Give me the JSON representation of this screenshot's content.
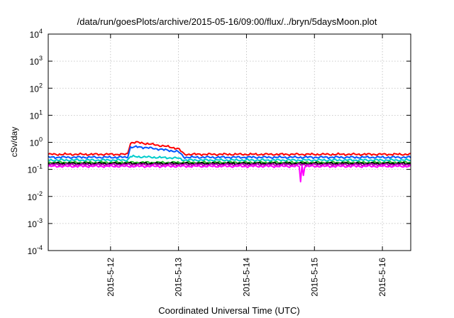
{
  "chart_data": {
    "type": "line",
    "title": "/data/run/goesPlots/archive/2015-05-16/09:00/flux/../bryn/5daysMoon.plot",
    "xlabel": "Coordinated Universal Time (UTC)",
    "ylabel": "cSv/day",
    "yscale": "log",
    "ylim": [
      0.0001,
      10000
    ],
    "y_ticks": [
      {
        "exp": "-4",
        "value": 0.0001
      },
      {
        "exp": "-3",
        "value": 0.001
      },
      {
        "exp": "-2",
        "value": 0.01
      },
      {
        "exp": "-1",
        "value": 0.1
      },
      {
        "exp": "0",
        "value": 1
      },
      {
        "exp": "1",
        "value": 10
      },
      {
        "exp": "2",
        "value": 100
      },
      {
        "exp": "3",
        "value": 1000
      },
      {
        "exp": "4",
        "value": 10000
      }
    ],
    "xlim": [
      "2015-05-11T02:00",
      "2015-05-16T10:00"
    ],
    "x_ticks": [
      {
        "label": "2015-5-12",
        "date": "2015-05-12T00:00"
      },
      {
        "label": "2015-5-13",
        "date": "2015-05-13T00:00"
      },
      {
        "label": "2015-5-14",
        "date": "2015-05-14T00:00"
      },
      {
        "label": "2015-5-15",
        "date": "2015-05-15T00:00"
      },
      {
        "label": "2015-5-16",
        "date": "2015-05-16T00:00"
      }
    ],
    "grid": true,
    "legend": "none",
    "series": [
      {
        "color": "#ff0000",
        "base": 0.34,
        "points": [
          {
            "x": "2015-05-11T02:00",
            "y": 0.36
          },
          {
            "x": "2015-05-12T06:00",
            "y": 0.36
          },
          {
            "x": "2015-05-12T07:00",
            "y": 0.95
          },
          {
            "x": "2015-05-12T09:00",
            "y": 1.0
          },
          {
            "x": "2015-05-12T12:00",
            "y": 0.92
          },
          {
            "x": "2015-05-12T16:00",
            "y": 0.8
          },
          {
            "x": "2015-05-12T20:00",
            "y": 0.7
          },
          {
            "x": "2015-05-13T00:00",
            "y": 0.58
          },
          {
            "x": "2015-05-13T02:00",
            "y": 0.36
          },
          {
            "x": "2015-05-16T10:00",
            "y": 0.36
          }
        ]
      },
      {
        "color": "#0055ff",
        "base": 0.27,
        "points": [
          {
            "x": "2015-05-11T02:00",
            "y": 0.28
          },
          {
            "x": "2015-05-12T06:00",
            "y": 0.28
          },
          {
            "x": "2015-05-12T07:00",
            "y": 0.65
          },
          {
            "x": "2015-05-12T10:00",
            "y": 0.68
          },
          {
            "x": "2015-05-12T16:00",
            "y": 0.58
          },
          {
            "x": "2015-05-13T00:00",
            "y": 0.45
          },
          {
            "x": "2015-05-13T02:00",
            "y": 0.28
          },
          {
            "x": "2015-05-16T10:00",
            "y": 0.28
          }
        ]
      },
      {
        "color": "#00cccc",
        "base": 0.22,
        "points": [
          {
            "x": "2015-05-11T02:00",
            "y": 0.22
          },
          {
            "x": "2015-05-12T06:00",
            "y": 0.22
          },
          {
            "x": "2015-05-12T07:00",
            "y": 0.3
          },
          {
            "x": "2015-05-13T00:00",
            "y": 0.26
          },
          {
            "x": "2015-05-13T02:00",
            "y": 0.22
          },
          {
            "x": "2015-05-16T10:00",
            "y": 0.22
          }
        ]
      },
      {
        "color": "#22bb22",
        "base": 0.18,
        "points": [
          {
            "x": "2015-05-11T02:00",
            "y": 0.18
          },
          {
            "x": "2015-05-16T10:00",
            "y": 0.18
          }
        ]
      },
      {
        "color": "#000000",
        "base": 0.165,
        "points": [
          {
            "x": "2015-05-11T02:00",
            "y": 0.165
          },
          {
            "x": "2015-05-16T10:00",
            "y": 0.165
          }
        ]
      },
      {
        "color": "#aa00aa",
        "base": 0.15,
        "points": [
          {
            "x": "2015-05-11T02:00",
            "y": 0.15
          },
          {
            "x": "2015-05-16T10:00",
            "y": 0.15
          }
        ]
      },
      {
        "color": "#ff00ff",
        "base": 0.13,
        "dips": [
          {
            "x": "2015-05-14T19:00",
            "y": 0.035
          },
          {
            "x": "2015-05-14T20:00",
            "y": 0.06
          }
        ],
        "points": [
          {
            "x": "2015-05-11T02:00",
            "y": 0.13
          },
          {
            "x": "2015-05-16T10:00",
            "y": 0.13
          }
        ]
      }
    ]
  }
}
